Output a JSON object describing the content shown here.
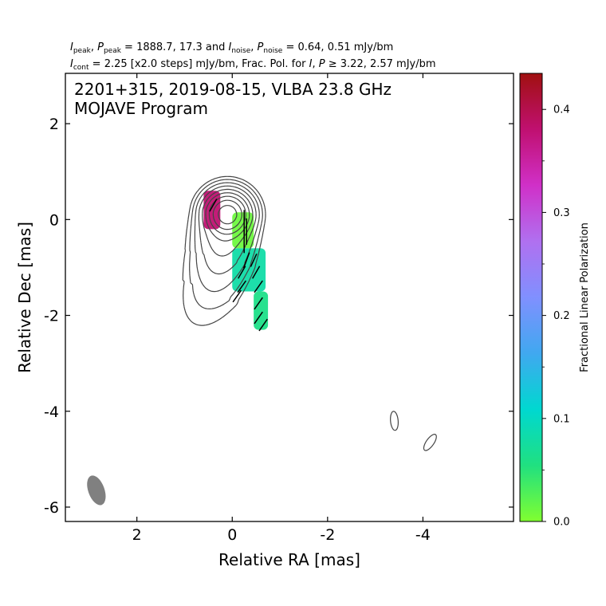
{
  "header": {
    "line1": {
      "p1": "I",
      "s1": "peak",
      "p2": ", ",
      "p3": "P",
      "s2": "peak",
      "p4": " = 1888.7, 17.3 and ",
      "p5": "I",
      "s3": "noise",
      "p6": ", ",
      "p7": "P",
      "s4": "noise",
      "p8": " = 0.64, 0.51 mJy/bm"
    },
    "line2": {
      "p1": "I",
      "s1": "cont",
      "p2": " = 2.25 [x2.0 steps] mJy/bm, Frac. Pol. for ",
      "p3": "I",
      "p4": ", ",
      "p5": "P",
      "p6": " ≥ 3.22, 2.57 mJy/bm"
    }
  },
  "chart_data": {
    "type": "contour",
    "annotation_line1": "2201+315, 2019-08-15, VLBA 23.8 GHz",
    "annotation_line2": "MOJAVE Program",
    "xlabel": "Relative RA [mas]",
    "ylabel": "Relative Dec [mas]",
    "xlim": [
      3.5,
      -5.9
    ],
    "ylim": [
      -6.3,
      3.05
    ],
    "xticks": [
      2,
      0,
      -2,
      -4
    ],
    "xtick_labels": [
      "2",
      "0",
      "-2",
      "-4"
    ],
    "yticks": [
      2,
      0,
      -2,
      -4,
      -6
    ],
    "ytick_labels": [
      "2",
      "0",
      "-2",
      "-4",
      "-6"
    ],
    "colorbar": {
      "label": "Fractional Linear Polarization",
      "range": [
        0.0,
        0.435
      ],
      "ticks": [
        0.0,
        0.1,
        0.2,
        0.3,
        0.4
      ],
      "tick_labels": [
        "0.0",
        "0.1",
        "0.2",
        "0.3",
        "0.4"
      ],
      "colors": [
        "#80ff30",
        "#20e080",
        "#00d8d0",
        "#40a8f0",
        "#8090ff",
        "#b070f0",
        "#d030c8",
        "#c01070",
        "#a01010"
      ]
    },
    "contour_color": "#444444",
    "contour_base_mJy": 2.25,
    "contour_step_factor": 2.0,
    "core_center": [
      0.1,
      0.1
    ],
    "jet_ridge": [
      [
        0.1,
        0.1
      ],
      [
        0.25,
        -0.8
      ],
      [
        0.45,
        -1.5
      ],
      [
        0.8,
        -2.2
      ],
      [
        1.1,
        -2.6
      ]
    ],
    "isolated_contours": [
      {
        "ra": -3.4,
        "dec": -4.2,
        "a": 0.2,
        "b": 0.08,
        "angle_deg": 95
      },
      {
        "ra": -4.15,
        "dec": -4.65,
        "a": 0.2,
        "b": 0.08,
        "angle_deg": 55
      }
    ],
    "beam": {
      "ra": 2.85,
      "dec": -5.65,
      "major_mas": 0.65,
      "minor_mas": 0.34,
      "pa_deg": 20,
      "color": "#808080"
    },
    "polarization_regions": [
      {
        "ra_range": [
          -0.45,
          0.0
        ],
        "dec_range": [
          -0.6,
          0.15
        ],
        "frac_pol": 0.01
      },
      {
        "ra_range": [
          -0.7,
          0.0
        ],
        "dec_range": [
          -1.5,
          -0.6
        ],
        "frac_pol": 0.08
      },
      {
        "ra_range": [
          -0.75,
          -0.45
        ],
        "dec_range": [
          -2.3,
          -1.5
        ],
        "frac_pol": 0.06
      },
      {
        "ra_range": [
          0.25,
          0.6
        ],
        "dec_range": [
          -0.2,
          0.6
        ],
        "frac_pol": 0.38
      }
    ],
    "evpa_vectors": [
      {
        "ra": -0.25,
        "dec": -0.05,
        "angle_deg": 90,
        "len": 0.5
      },
      {
        "ra": -0.3,
        "dec": -0.25,
        "angle_deg": 90,
        "len": 0.55
      },
      {
        "ra": -0.25,
        "dec": -0.45,
        "angle_deg": 90,
        "len": 0.5
      },
      {
        "ra": -0.3,
        "dec": -0.85,
        "angle_deg": 70,
        "len": 0.35
      },
      {
        "ra": -0.45,
        "dec": -0.85,
        "angle_deg": 65,
        "len": 0.3
      },
      {
        "ra": -0.2,
        "dec": -1.1,
        "angle_deg": 60,
        "len": 0.3
      },
      {
        "ra": -0.5,
        "dec": -1.1,
        "angle_deg": 60,
        "len": 0.3
      },
      {
        "ra": -0.2,
        "dec": -1.4,
        "angle_deg": 55,
        "len": 0.3
      },
      {
        "ra": -0.55,
        "dec": -1.4,
        "angle_deg": 55,
        "len": 0.3
      },
      {
        "ra": -0.1,
        "dec": -1.6,
        "angle_deg": 55,
        "len": 0.3
      },
      {
        "ra": -0.55,
        "dec": -1.75,
        "angle_deg": 55,
        "len": 0.3
      },
      {
        "ra": -0.55,
        "dec": -2.05,
        "angle_deg": 55,
        "len": 0.3
      },
      {
        "ra": -0.65,
        "dec": -2.2,
        "angle_deg": 55,
        "len": 0.3
      },
      {
        "ra": 0.4,
        "dec": 0.3,
        "angle_deg": 60,
        "len": 0.3
      }
    ]
  }
}
